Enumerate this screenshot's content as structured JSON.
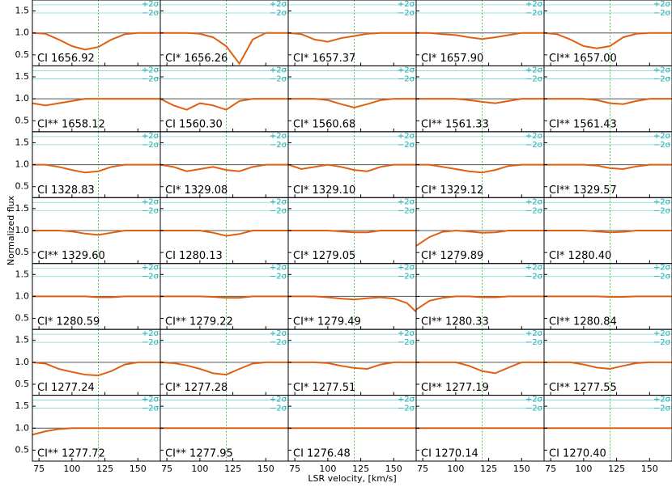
{
  "chart_data": {
    "type": "line",
    "xlabel": "LSR velocity, [km/s]",
    "ylabel": "Normalized flux",
    "xlim": [
      70,
      167
    ],
    "xticks": [
      75,
      100,
      125,
      150
    ],
    "ylim": [
      0.25,
      1.75
    ],
    "yticks": [
      0.5,
      {
        "value": 1,
        "label": "1.0"
      },
      1.5
    ],
    "x": [
      70,
      80,
      90,
      100,
      110,
      120,
      130,
      140,
      150,
      160,
      167
    ],
    "marker_x": 120,
    "sigma_labels": [
      "+2σ",
      "−2σ"
    ],
    "color": "#e06010",
    "panels": [
      {
        "label": "CI 1656.92",
        "values": [
          1.0,
          0.98,
          0.85,
          0.7,
          0.62,
          0.68,
          0.85,
          0.97,
          1.0,
          1.0,
          1.0
        ]
      },
      {
        "label": "CI* 1656.26",
        "values": [
          1.0,
          1.0,
          1.0,
          0.98,
          0.9,
          0.7,
          0.3,
          0.85,
          1.0,
          1.0,
          1.0
        ]
      },
      {
        "label": "CI* 1657.37",
        "values": [
          1.0,
          0.97,
          0.85,
          0.8,
          0.88,
          0.93,
          0.98,
          1.0,
          1.0,
          1.0,
          1.0
        ]
      },
      {
        "label": "CI* 1657.90",
        "values": [
          1.0,
          1.0,
          0.97,
          0.95,
          0.9,
          0.86,
          0.9,
          0.95,
          1.0,
          1.0,
          1.0
        ]
      },
      {
        "label": "CI** 1657.00",
        "values": [
          1.0,
          0.97,
          0.85,
          0.7,
          0.65,
          0.7,
          0.9,
          0.98,
          1.0,
          1.0,
          1.0
        ]
      },
      {
        "label": "CI** 1658.12",
        "values": [
          0.9,
          0.85,
          0.9,
          0.95,
          1.0,
          1.0,
          1.0,
          1.0,
          1.0,
          1.0,
          1.0
        ]
      },
      {
        "label": "CI 1560.30",
        "values": [
          1.0,
          0.85,
          0.75,
          0.9,
          0.85,
          0.75,
          0.95,
          1.0,
          1.0,
          1.0,
          1.0
        ]
      },
      {
        "label": "CI* 1560.68",
        "values": [
          1.0,
          1.0,
          1.0,
          0.97,
          0.88,
          0.8,
          0.88,
          0.97,
          1.0,
          1.0,
          1.0
        ]
      },
      {
        "label": "CI** 1561.33",
        "values": [
          1.0,
          1.0,
          1.0,
          1.0,
          0.97,
          0.93,
          0.9,
          0.95,
          1.0,
          1.0,
          1.0
        ]
      },
      {
        "label": "CI** 1561.43",
        "values": [
          1.0,
          1.0,
          1.0,
          1.0,
          0.97,
          0.9,
          0.88,
          0.95,
          1.0,
          1.0,
          1.0
        ]
      },
      {
        "label": "CI 1328.83",
        "values": [
          1.0,
          1.0,
          0.95,
          0.88,
          0.82,
          0.85,
          0.95,
          1.0,
          1.0,
          1.0,
          1.0
        ]
      },
      {
        "label": "CI* 1329.08",
        "values": [
          1.0,
          0.95,
          0.85,
          0.9,
          0.95,
          0.88,
          0.85,
          0.95,
          1.0,
          1.0,
          1.0
        ]
      },
      {
        "label": "CI* 1329.10",
        "values": [
          1.0,
          0.9,
          0.95,
          1.0,
          0.95,
          0.88,
          0.85,
          0.95,
          1.0,
          1.0,
          1.0
        ]
      },
      {
        "label": "CI* 1329.12",
        "values": [
          1.0,
          1.0,
          0.95,
          0.9,
          0.85,
          0.82,
          0.88,
          0.97,
          1.0,
          1.0,
          1.0
        ]
      },
      {
        "label": "CI** 1329.57",
        "values": [
          1.0,
          1.0,
          1.0,
          1.0,
          0.98,
          0.92,
          0.9,
          0.96,
          1.0,
          1.0,
          1.0
        ]
      },
      {
        "label": "CI** 1329.60",
        "values": [
          1.0,
          1.0,
          1.0,
          0.98,
          0.93,
          0.9,
          0.95,
          1.0,
          1.0,
          1.0,
          1.0
        ]
      },
      {
        "label": "CI 1280.13",
        "values": [
          1.0,
          1.0,
          1.0,
          1.0,
          0.95,
          0.88,
          0.92,
          1.0,
          1.0,
          1.0,
          1.0
        ]
      },
      {
        "label": "CI* 1279.05",
        "values": [
          1.0,
          1.0,
          1.0,
          1.0,
          0.98,
          0.96,
          0.96,
          1.0,
          1.0,
          1.0,
          1.0
        ]
      },
      {
        "label": "CI* 1279.89",
        "values": [
          0.65,
          0.85,
          0.97,
          1.0,
          0.98,
          0.95,
          0.96,
          1.0,
          1.0,
          1.0,
          1.0
        ]
      },
      {
        "label": "CI* 1280.40",
        "values": [
          1.0,
          1.0,
          1.0,
          1.0,
          0.98,
          0.96,
          0.97,
          1.0,
          1.0,
          1.0,
          1.0
        ]
      },
      {
        "label": "CI* 1280.59",
        "values": [
          1.0,
          1.0,
          1.0,
          1.0,
          1.0,
          0.98,
          0.98,
          1.0,
          1.0,
          1.0,
          1.0
        ]
      },
      {
        "label": "CI** 1279.22",
        "values": [
          1.0,
          1.0,
          1.0,
          1.0,
          0.99,
          0.97,
          0.97,
          1.0,
          1.0,
          1.0,
          1.0
        ]
      },
      {
        "label": "CI** 1279.49",
        "values": [
          1.0,
          1.0,
          1.0,
          0.98,
          0.95,
          0.93,
          0.96,
          0.98,
          0.95,
          0.85,
          0.65
        ]
      },
      {
        "label": "CI** 1280.33",
        "values": [
          0.7,
          0.9,
          0.97,
          1.0,
          1.0,
          0.98,
          0.98,
          1.0,
          1.0,
          1.0,
          1.0
        ]
      },
      {
        "label": "CI** 1280.84",
        "values": [
          1.0,
          1.0,
          1.0,
          1.0,
          1.0,
          0.99,
          0.99,
          1.0,
          1.0,
          1.0,
          1.0
        ]
      },
      {
        "label": "CI 1277.24",
        "values": [
          1.0,
          0.97,
          0.85,
          0.78,
          0.72,
          0.7,
          0.8,
          0.95,
          1.0,
          1.0,
          1.0
        ]
      },
      {
        "label": "CI* 1277.28",
        "values": [
          1.0,
          0.98,
          0.93,
          0.85,
          0.75,
          0.72,
          0.85,
          0.97,
          1.0,
          1.0,
          1.0
        ]
      },
      {
        "label": "CI* 1277.51",
        "values": [
          1.0,
          1.0,
          1.0,
          0.98,
          0.92,
          0.87,
          0.85,
          0.95,
          1.0,
          1.0,
          1.0
        ]
      },
      {
        "label": "CI** 1277.19",
        "values": [
          1.0,
          1.0,
          1.0,
          1.0,
          0.92,
          0.8,
          0.75,
          0.88,
          1.0,
          1.0,
          1.0
        ]
      },
      {
        "label": "CI** 1277.55",
        "values": [
          1.0,
          1.0,
          1.0,
          0.95,
          0.88,
          0.85,
          0.92,
          0.98,
          1.0,
          1.0,
          1.0
        ]
      },
      {
        "label": "CI** 1277.72",
        "values": [
          0.85,
          0.93,
          0.98,
          1.0,
          1.0,
          1.0,
          1.0,
          1.0,
          1.0,
          1.0,
          1.0
        ]
      },
      {
        "label": "CI** 1277.95",
        "values": [
          1.0,
          1.0,
          1.0,
          1.0,
          1.0,
          1.0,
          1.0,
          1.0,
          1.0,
          1.0,
          1.0
        ]
      },
      {
        "label": "CI 1276.48",
        "values": [
          1.0,
          1.0,
          1.0,
          1.0,
          1.0,
          1.0,
          1.0,
          1.0,
          1.0,
          1.0,
          1.0
        ]
      },
      {
        "label": "CI 1270.14",
        "values": [
          1.0,
          1.0,
          1.0,
          1.0,
          1.0,
          1.0,
          1.0,
          1.0,
          1.0,
          1.0,
          1.0
        ]
      },
      {
        "label": "CI 1270.40",
        "values": [
          1.0,
          1.0,
          1.0,
          1.0,
          1.0,
          1.0,
          1.0,
          1.0,
          1.0,
          1.0,
          1.0
        ]
      }
    ]
  }
}
